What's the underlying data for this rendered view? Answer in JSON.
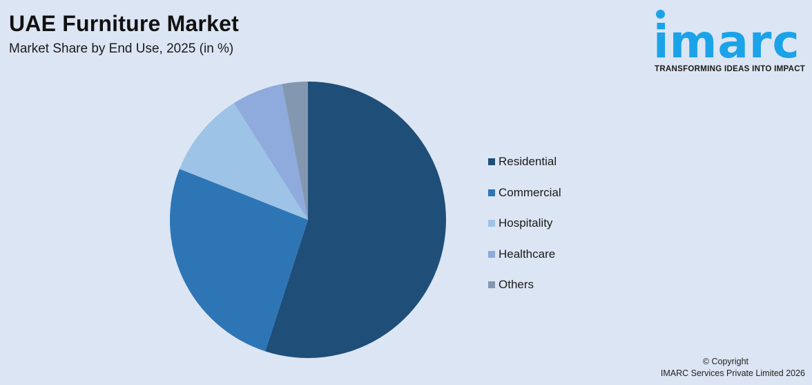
{
  "header": {
    "title": "UAE Furniture Market",
    "subtitle": "Market Share by End Use, 2025 (in %)"
  },
  "logo": {
    "word": "imarc",
    "tagline": "TRANSFORMING IDEAS INTO IMPACT",
    "color": "#1aa3e8"
  },
  "footer": {
    "copyright_line1": "© Copyright",
    "copyright_line2": "IMARC Services Private Limited 2026"
  },
  "chart_data": {
    "type": "pie",
    "title": "UAE Furniture Market",
    "subtitle": "Market Share by End Use, 2025 (in %)",
    "categories": [
      "Residential",
      "Commercial",
      "Hospitality",
      "Healthcare",
      "Others"
    ],
    "values": [
      55,
      26,
      10,
      6,
      3
    ],
    "colors": [
      "#1f4e79",
      "#2e75b6",
      "#9dc3e6",
      "#8faadc",
      "#8497b0"
    ],
    "start_angle": "12 o'clock, clockwise",
    "legend_position": "right",
    "data_labels": false
  }
}
